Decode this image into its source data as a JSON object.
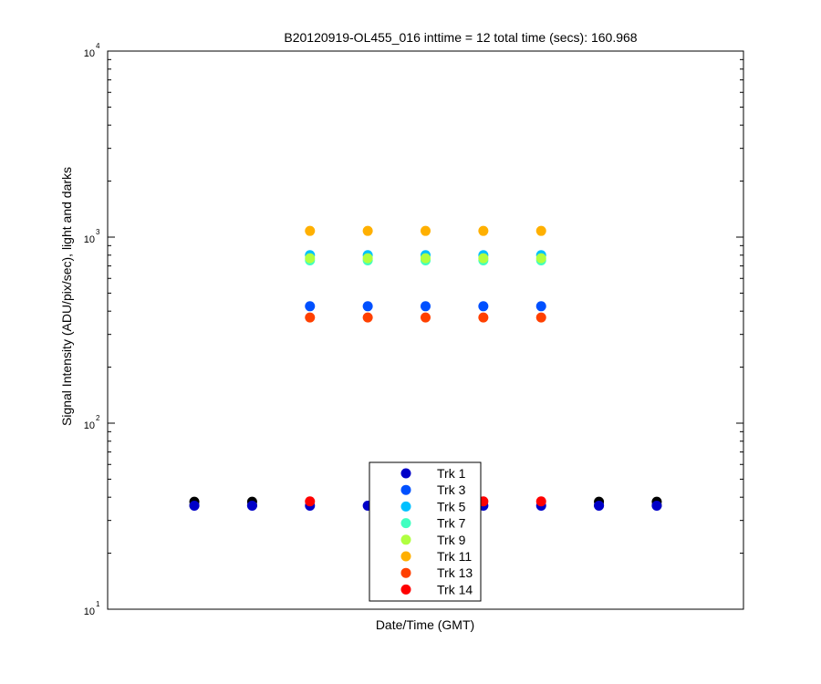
{
  "chart_data": {
    "type": "scatter",
    "title": "B20120919-OL455_016 inttime = 12 total time (secs): 160.968",
    "xlabel": "Date/Time (GMT)",
    "ylabel": "Signal Intensity (ADU/pix/sec), light and darks",
    "yscale": "log",
    "ylim": [
      10,
      10000
    ],
    "xlim": [
      0,
      11
    ],
    "y_ticks": [
      {
        "base": "10",
        "exp": "1"
      },
      {
        "base": "10",
        "exp": "2"
      },
      {
        "base": "10",
        "exp": "3"
      },
      {
        "base": "10",
        "exp": "4"
      }
    ],
    "grid": false,
    "legend_placement": "bottom-center",
    "series": [
      {
        "name": "Trk 1",
        "color": "#0000c8",
        "x": [
          1.5,
          2.5,
          3.5,
          4.5,
          5.5,
          6.5,
          7.5,
          8.5,
          9.5
        ],
        "y": [
          36,
          36,
          36,
          36,
          36,
          36,
          36,
          36,
          36
        ]
      },
      {
        "name": "Trk 3",
        "color": "#0050ff",
        "x": [
          3.5,
          4.5,
          5.5,
          6.5,
          7.5
        ],
        "y": [
          425,
          425,
          425,
          425,
          425
        ]
      },
      {
        "name": "Trk 5",
        "color": "#00c0ff",
        "x": [
          3.5,
          4.5,
          5.5,
          6.5,
          7.5
        ],
        "y": [
          800,
          800,
          800,
          800,
          800
        ]
      },
      {
        "name": "Trk 7",
        "color": "#40ffc0",
        "x": [
          3.5,
          4.5,
          5.5,
          6.5,
          7.5
        ],
        "y": [
          750,
          750,
          750,
          750,
          750
        ]
      },
      {
        "name": "Trk 9",
        "color": "#b0ff40",
        "x": [
          3.5,
          4.5,
          5.5,
          6.5,
          7.5
        ],
        "y": [
          770,
          770,
          770,
          770,
          770
        ]
      },
      {
        "name": "Trk 11",
        "color": "#ffb000",
        "x": [
          3.5,
          4.5,
          5.5,
          6.5,
          7.5
        ],
        "y": [
          1080,
          1080,
          1080,
          1080,
          1080
        ]
      },
      {
        "name": "Trk 13",
        "color": "#ff4000",
        "x": [
          3.5,
          4.5,
          5.5,
          6.5,
          7.5
        ],
        "y": [
          370,
          370,
          370,
          370,
          370
        ]
      },
      {
        "name": "Trk 14",
        "color": "#ff0000",
        "x": [
          3.5,
          6.5,
          7.5
        ],
        "y": [
          38,
          38,
          38
        ]
      }
    ],
    "dark_points": {
      "color": "#000000",
      "x": [
        1.5,
        2.5,
        8.5,
        9.5
      ],
      "y": [
        37,
        37,
        37,
        37
      ]
    }
  }
}
